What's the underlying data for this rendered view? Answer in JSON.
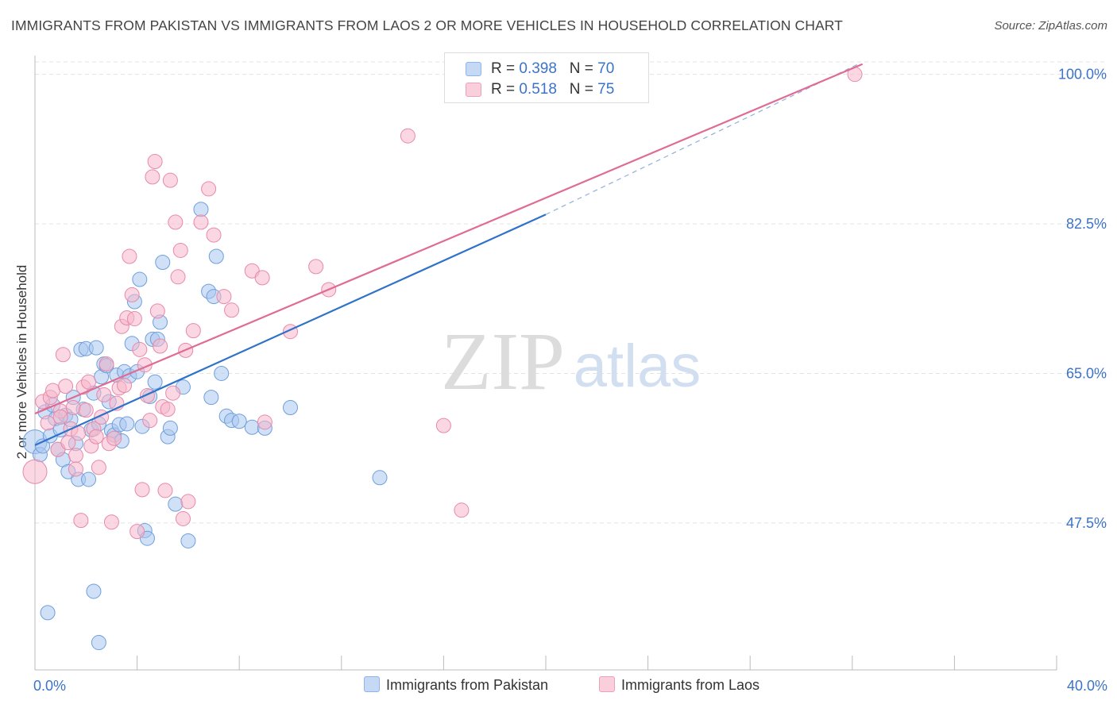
{
  "title": "IMMIGRANTS FROM PAKISTAN VS IMMIGRANTS FROM LAOS 2 OR MORE VEHICLES IN HOUSEHOLD CORRELATION CHART",
  "source": "Source: ZipAtlas.com",
  "watermark": {
    "zip": "ZIP",
    "atlas": "atlas"
  },
  "legend_top": {
    "rows": [
      {
        "r_label": "R = ",
        "r_value": "0.398",
        "n_label": "N = ",
        "n_value": "70"
      },
      {
        "r_label": "R = ",
        "r_value": "0.518",
        "n_label": "N = ",
        "n_value": "75"
      }
    ]
  },
  "legend_bottom": {
    "items": [
      "Immigrants from Pakistan",
      "Immigrants from Laos"
    ]
  },
  "colors": {
    "pakistan_fill": "#a9c7ef",
    "pakistan_stroke": "#6f9fdc",
    "pakistan_line": "#2f72c9",
    "laos_fill": "#f5b7cb",
    "laos_stroke": "#e889a8",
    "laos_line": "#e06b93",
    "tick_label": "#3b73c8",
    "grid": "#e3e3e3"
  },
  "chart_data": {
    "type": "scatter",
    "title": "IMMIGRANTS FROM PAKISTAN VS IMMIGRANTS FROM LAOS 2 OR MORE VEHICLES IN HOUSEHOLD CORRELATION CHART",
    "xlabel": "",
    "ylabel": "2 or more Vehicles in Household",
    "xlim": [
      0,
      40
    ],
    "ylim": [
      30.3,
      102.2
    ],
    "x_tick_labels": [
      "0.0%",
      "40.0%"
    ],
    "y_ticks": [
      47.5,
      65.0,
      82.5,
      100.0
    ],
    "y_tick_labels": [
      "47.5%",
      "65.0%",
      "82.5%",
      "100.0%"
    ],
    "legend_position": "top-center",
    "series": [
      {
        "name": "Immigrants from Pakistan",
        "R": 0.398,
        "N": 70,
        "trend": {
          "x0": 0.0,
          "y0": 56.6,
          "x1": 20.0,
          "y1": 83.6,
          "dashed_to_x": 32.3,
          "dashed_to_y": 101.3
        },
        "points": [
          [
            0.0,
            57.0
          ],
          [
            0.2,
            55.5
          ],
          [
            0.3,
            56.5
          ],
          [
            0.4,
            60.5
          ],
          [
            0.6,
            57.7
          ],
          [
            0.7,
            61.3
          ],
          [
            0.8,
            59.7
          ],
          [
            0.9,
            56.1
          ],
          [
            1.0,
            58.4
          ],
          [
            1.1,
            54.9
          ],
          [
            1.2,
            60.1
          ],
          [
            1.3,
            53.5
          ],
          [
            1.4,
            59.6
          ],
          [
            1.5,
            62.2
          ],
          [
            1.6,
            56.8
          ],
          [
            1.7,
            52.6
          ],
          [
            1.8,
            67.8
          ],
          [
            1.9,
            60.8
          ],
          [
            2.0,
            67.9
          ],
          [
            2.1,
            52.6
          ],
          [
            2.2,
            58.4
          ],
          [
            2.3,
            62.7
          ],
          [
            2.4,
            68.0
          ],
          [
            2.5,
            59.1
          ],
          [
            2.6,
            64.6
          ],
          [
            2.7,
            66.1
          ],
          [
            2.8,
            65.9
          ],
          [
            2.9,
            61.7
          ],
          [
            3.0,
            58.3
          ],
          [
            3.1,
            57.8
          ],
          [
            3.2,
            64.8
          ],
          [
            3.3,
            59.0
          ],
          [
            3.4,
            57.1
          ],
          [
            3.5,
            65.2
          ],
          [
            3.6,
            59.1
          ],
          [
            3.7,
            64.7
          ],
          [
            3.8,
            68.5
          ],
          [
            3.9,
            73.4
          ],
          [
            4.0,
            65.2
          ],
          [
            4.1,
            76.0
          ],
          [
            4.2,
            58.8
          ],
          [
            4.3,
            46.6
          ],
          [
            4.4,
            45.7
          ],
          [
            4.5,
            62.3
          ],
          [
            4.6,
            69.0
          ],
          [
            4.7,
            64.0
          ],
          [
            4.8,
            69.0
          ],
          [
            4.9,
            71.0
          ],
          [
            5.0,
            78.0
          ],
          [
            5.2,
            57.6
          ],
          [
            5.3,
            58.6
          ],
          [
            5.5,
            49.7
          ],
          [
            5.8,
            63.4
          ],
          [
            6.0,
            45.4
          ],
          [
            6.5,
            84.2
          ],
          [
            6.8,
            74.6
          ],
          [
            6.9,
            62.2
          ],
          [
            7.0,
            74.0
          ],
          [
            7.1,
            78.7
          ],
          [
            7.3,
            65.0
          ],
          [
            7.5,
            60.0
          ],
          [
            7.7,
            59.5
          ],
          [
            8.0,
            59.4
          ],
          [
            8.5,
            58.7
          ],
          [
            9.0,
            58.6
          ],
          [
            10.0,
            61.0
          ],
          [
            13.5,
            52.8
          ],
          [
            2.3,
            39.5
          ],
          [
            0.5,
            37.0
          ],
          [
            2.5,
            33.5
          ]
        ]
      },
      {
        "name": "Immigrants from Laos",
        "R": 0.518,
        "N": 75,
        "trend": {
          "x0": 0.0,
          "y0": 60.3,
          "x1": 32.4,
          "y1": 101.2
        },
        "points": [
          [
            0.0,
            53.5
          ],
          [
            0.3,
            61.7
          ],
          [
            0.5,
            59.2
          ],
          [
            0.6,
            62.2
          ],
          [
            0.7,
            63.0
          ],
          [
            0.9,
            56.1
          ],
          [
            1.0,
            60.6
          ],
          [
            1.1,
            67.2
          ],
          [
            1.2,
            63.5
          ],
          [
            1.3,
            56.9
          ],
          [
            1.4,
            58.5
          ],
          [
            1.5,
            61.0
          ],
          [
            1.6,
            55.4
          ],
          [
            1.7,
            58.0
          ],
          [
            1.8,
            47.8
          ],
          [
            1.9,
            63.4
          ],
          [
            2.0,
            60.7
          ],
          [
            2.2,
            56.5
          ],
          [
            2.3,
            58.5
          ],
          [
            2.4,
            57.6
          ],
          [
            2.5,
            54.0
          ],
          [
            2.6,
            59.9
          ],
          [
            2.7,
            62.5
          ],
          [
            2.8,
            66.1
          ],
          [
            2.9,
            56.8
          ],
          [
            3.0,
            47.6
          ],
          [
            3.1,
            57.4
          ],
          [
            3.2,
            61.5
          ],
          [
            3.3,
            63.3
          ],
          [
            3.4,
            70.5
          ],
          [
            3.5,
            63.6
          ],
          [
            3.6,
            71.5
          ],
          [
            3.7,
            78.7
          ],
          [
            3.8,
            74.2
          ],
          [
            3.9,
            71.4
          ],
          [
            4.0,
            46.5
          ],
          [
            4.1,
            67.8
          ],
          [
            4.2,
            51.4
          ],
          [
            4.3,
            66.0
          ],
          [
            4.4,
            62.4
          ],
          [
            4.5,
            59.5
          ],
          [
            4.6,
            88.0
          ],
          [
            4.7,
            89.8
          ],
          [
            4.8,
            72.3
          ],
          [
            4.9,
            68.2
          ],
          [
            5.0,
            61.1
          ],
          [
            5.1,
            51.3
          ],
          [
            5.2,
            60.8
          ],
          [
            5.3,
            87.6
          ],
          [
            5.4,
            62.7
          ],
          [
            5.5,
            82.7
          ],
          [
            5.6,
            76.3
          ],
          [
            5.7,
            79.4
          ],
          [
            5.8,
            48.0
          ],
          [
            5.9,
            67.7
          ],
          [
            6.0,
            50.0
          ],
          [
            6.2,
            70.0
          ],
          [
            6.5,
            82.7
          ],
          [
            6.8,
            86.6
          ],
          [
            7.0,
            81.2
          ],
          [
            7.4,
            74.0
          ],
          [
            7.7,
            72.4
          ],
          [
            8.5,
            77.0
          ],
          [
            8.9,
            76.2
          ],
          [
            9.0,
            59.3
          ],
          [
            10.0,
            69.9
          ],
          [
            11.0,
            77.5
          ],
          [
            11.5,
            74.8
          ],
          [
            14.6,
            92.8
          ],
          [
            16.0,
            58.9
          ],
          [
            16.7,
            49.0
          ],
          [
            32.1,
            100.0
          ],
          [
            1.0,
            59.9
          ],
          [
            2.1,
            64.0
          ],
          [
            1.6,
            53.8
          ]
        ]
      }
    ]
  }
}
